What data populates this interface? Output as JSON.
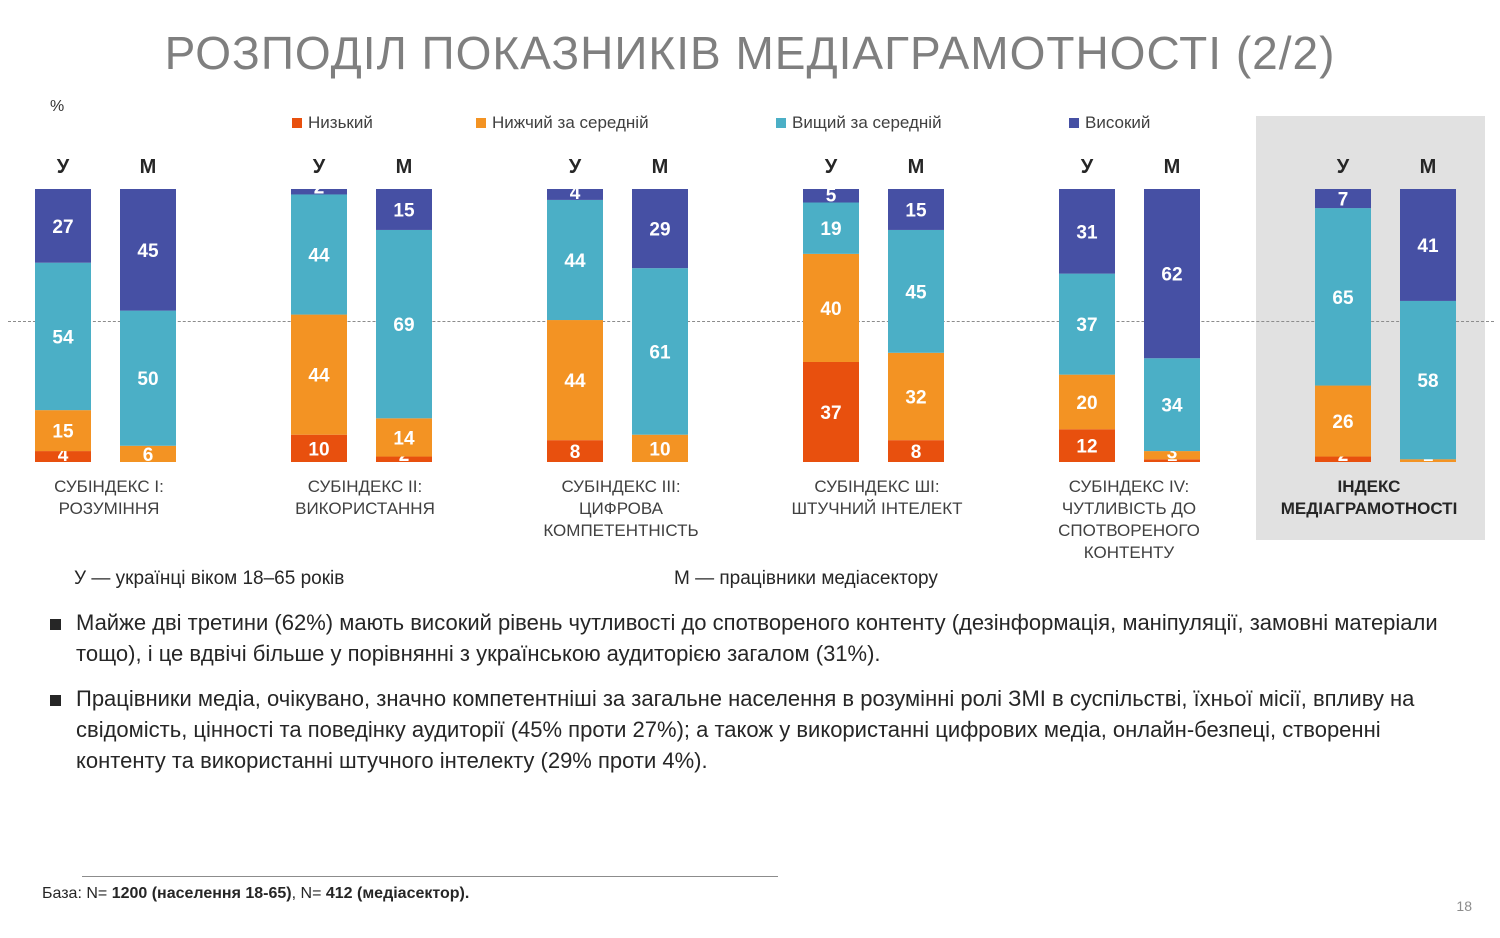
{
  "title": "РОЗПОДІЛ ПОКАЗНИКІВ МЕДІАГРАМОТНОСТІ (2/2)",
  "unit": "%",
  "colors": {
    "low": "#e8500e",
    "below_avg": "#f39323",
    "above_avg": "#4bafc6",
    "high": "#4650a4",
    "highlight_bg": "#e1e1e1"
  },
  "chart_data": {
    "type": "bar",
    "stacked": true,
    "unit": "%",
    "legend_position": "top",
    "series_names": [
      "Низький",
      "Нижчий за середній",
      "Вищий за середній",
      "Високий"
    ],
    "groups": [
      {
        "label": "СУБІНДЕКС І: РОЗУМІННЯ",
        "bars": [
          {
            "label": "У",
            "values": [
              4,
              15,
              54,
              27
            ]
          },
          {
            "label": "М",
            "values": [
              0,
              6,
              50,
              45
            ]
          }
        ]
      },
      {
        "label": "СУБІНДЕКС ІІ: ВИКОРИСТАННЯ",
        "bars": [
          {
            "label": "У",
            "values": [
              10,
              44,
              44,
              2
            ]
          },
          {
            "label": "М",
            "values": [
              2,
              14,
              69,
              15
            ]
          }
        ]
      },
      {
        "label": "СУБІНДЕКС ІІІ: ЦИФРОВА КОМПЕТЕНТНІСТЬ",
        "bars": [
          {
            "label": "У",
            "values": [
              8,
              44,
              44,
              4
            ]
          },
          {
            "label": "М",
            "values": [
              0,
              10,
              61,
              29
            ]
          }
        ]
      },
      {
        "label": "СУБІНДЕКС ШІ: ШТУЧНИЙ ІНТЕЛЕКТ",
        "bars": [
          {
            "label": "У",
            "values": [
              37,
              40,
              19,
              5
            ]
          },
          {
            "label": "М",
            "values": [
              8,
              32,
              45,
              15
            ]
          }
        ]
      },
      {
        "label": "СУБІНДЕКС IV: ЧУТЛИВІСТЬ ДО СПОТВОРЕНОГО КОНТЕНТУ",
        "bars": [
          {
            "label": "У",
            "values": [
              12,
              20,
              37,
              31
            ]
          },
          {
            "label": "М",
            "values": [
              1,
              3,
              34,
              62
            ]
          }
        ]
      },
      {
        "label": "ІНДЕКС МЕДІАГРАМОТНОСТІ",
        "highlighted": true,
        "bars": [
          {
            "label": "У",
            "values": [
              2,
              26,
              65,
              7
            ]
          },
          {
            "label": "М",
            "values": [
              0,
              1,
              58,
              41
            ]
          }
        ]
      }
    ]
  },
  "group_labels": [
    "Субіндекс І:\nРозуміння",
    "Субіндекс ІІ:\nВикористання",
    "Субіндекс ІІІ:\nЦифрова\nкомпетентність",
    "Субіндекс ШІ:\nштучний інтелект",
    "Субіндекс IV:\nЧутливість до\nспотвореного\nконтенту",
    "Індекс\nмедіаграмотності"
  ],
  "notes": {
    "u": "У — українці віком 18–65 років",
    "m": "М — працівники медіасектору"
  },
  "bullets": [
    "Майже дві третини (62%) мають високий рівень чутливості до спотвореного контенту (дезінформація, маніпуляції, замовні матеріали тощо), і це вдвічі більше у порівнянні з українською аудиторією загалом (31%).",
    "Працівники медіа, очікувано, значно компетентніші за загальне населення в розумінні ролі ЗМІ в суспільстві, їхньої місії, впливу на свідомість, цінності та поведінку аудиторії (45% проти 27%); а також у використанні цифрових медіа, онлайн-безпеці, створенні контенту та використанні штучного інтелекту (29% проти 4%)."
  ],
  "footer": {
    "prefix": "База: N= ",
    "n1": "1200 (населення 18-65)",
    "mid": ", N= ",
    "n2": "412 (медіасектор)."
  },
  "page_number": "18"
}
